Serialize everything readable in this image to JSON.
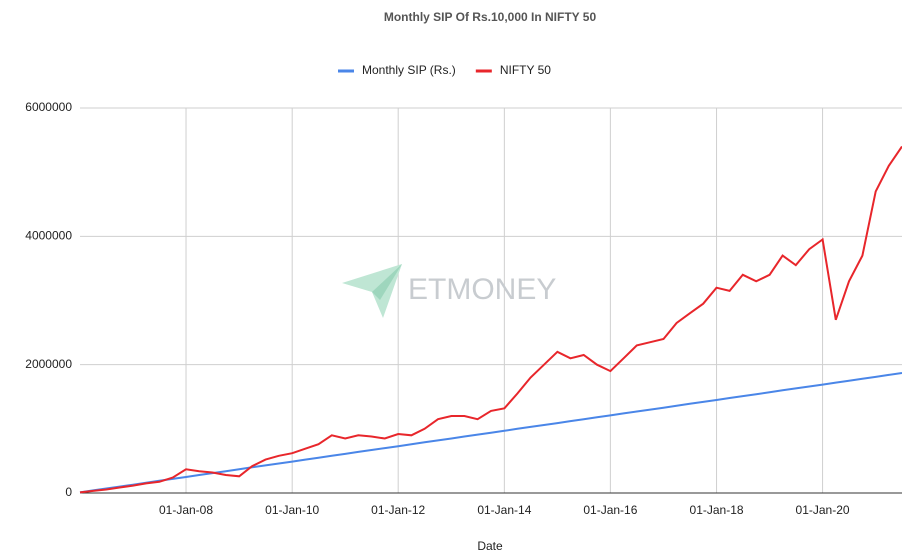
{
  "chart_data": {
    "type": "line",
    "title": "Monthly SIP Of Rs.10,000 In NIFTY 50",
    "xlabel": "Date",
    "watermark": "ETMONEY",
    "x": [
      "2006-01-01",
      "2006-04-01",
      "2006-07-01",
      "2006-10-01",
      "2007-01-01",
      "2007-04-01",
      "2007-07-01",
      "2007-10-01",
      "2008-01-01",
      "2008-04-01",
      "2008-07-01",
      "2008-10-01",
      "2009-01-01",
      "2009-04-01",
      "2009-07-01",
      "2009-10-01",
      "2010-01-01",
      "2010-04-01",
      "2010-07-01",
      "2010-10-01",
      "2011-01-01",
      "2011-04-01",
      "2011-07-01",
      "2011-10-01",
      "2012-01-01",
      "2012-04-01",
      "2012-07-01",
      "2012-10-01",
      "2013-01-01",
      "2013-04-01",
      "2013-07-01",
      "2013-10-01",
      "2014-01-01",
      "2014-04-01",
      "2014-07-01",
      "2014-10-01",
      "2015-01-01",
      "2015-04-01",
      "2015-07-01",
      "2015-10-01",
      "2016-01-01",
      "2016-04-01",
      "2016-07-01",
      "2016-10-01",
      "2017-01-01",
      "2017-04-01",
      "2017-07-01",
      "2017-10-01",
      "2018-01-01",
      "2018-04-01",
      "2018-07-01",
      "2018-10-01",
      "2019-01-01",
      "2019-04-01",
      "2019-07-01",
      "2019-10-01",
      "2020-01-01",
      "2020-04-01",
      "2020-07-01",
      "2020-10-01",
      "2021-01-01",
      "2021-04-01",
      "2021-07-01"
    ],
    "series": [
      {
        "name": "Monthly SIP (Rs.)",
        "color": "#4a86e8",
        "values": [
          10000,
          40000,
          70000,
          100000,
          130000,
          160000,
          190000,
          220000,
          250000,
          280000,
          310000,
          340000,
          370000,
          400000,
          430000,
          460000,
          490000,
          520000,
          550000,
          580000,
          610000,
          640000,
          670000,
          700000,
          730000,
          760000,
          790000,
          820000,
          850000,
          880000,
          910000,
          940000,
          970000,
          1000000,
          1030000,
          1060000,
          1090000,
          1120000,
          1150000,
          1180000,
          1210000,
          1240000,
          1270000,
          1300000,
          1330000,
          1360000,
          1390000,
          1420000,
          1450000,
          1480000,
          1510000,
          1540000,
          1570000,
          1600000,
          1630000,
          1660000,
          1690000,
          1720000,
          1750000,
          1780000,
          1810000,
          1840000,
          1870000
        ]
      },
      {
        "name": "NIFTY 50",
        "color": "#e8262b",
        "values": [
          10000,
          32000,
          55000,
          85000,
          115000,
          150000,
          175000,
          240000,
          370000,
          340000,
          320000,
          280000,
          260000,
          420000,
          520000,
          580000,
          620000,
          690000,
          760000,
          900000,
          850000,
          900000,
          880000,
          850000,
          920000,
          900000,
          1000000,
          1150000,
          1200000,
          1200000,
          1150000,
          1280000,
          1320000,
          1550000,
          1800000,
          2000000,
          2200000,
          2100000,
          2150000,
          2000000,
          1900000,
          2100000,
          2300000,
          2350000,
          2400000,
          2650000,
          2800000,
          2950000,
          3200000,
          3150000,
          3400000,
          3300000,
          3400000,
          3700000,
          3550000,
          3800000,
          3950000,
          2700000,
          3300000,
          3700000,
          4700000,
          5100000,
          5400000
        ]
      }
    ],
    "xlim": [
      "2006-01-01",
      "2021-07-01"
    ],
    "xticks": [
      {
        "value": "2008-01-01",
        "label": "01-Jan-08"
      },
      {
        "value": "2010-01-01",
        "label": "01-Jan-10"
      },
      {
        "value": "2012-01-01",
        "label": "01-Jan-12"
      },
      {
        "value": "2014-01-01",
        "label": "01-Jan-14"
      },
      {
        "value": "2016-01-01",
        "label": "01-Jan-16"
      },
      {
        "value": "2018-01-01",
        "label": "01-Jan-18"
      },
      {
        "value": "2020-01-01",
        "label": "01-Jan-20"
      }
    ],
    "ylim": [
      0,
      6000000
    ],
    "yticks": [
      0,
      2000000,
      4000000,
      6000000
    ],
    "grid": true,
    "legend": "top"
  }
}
